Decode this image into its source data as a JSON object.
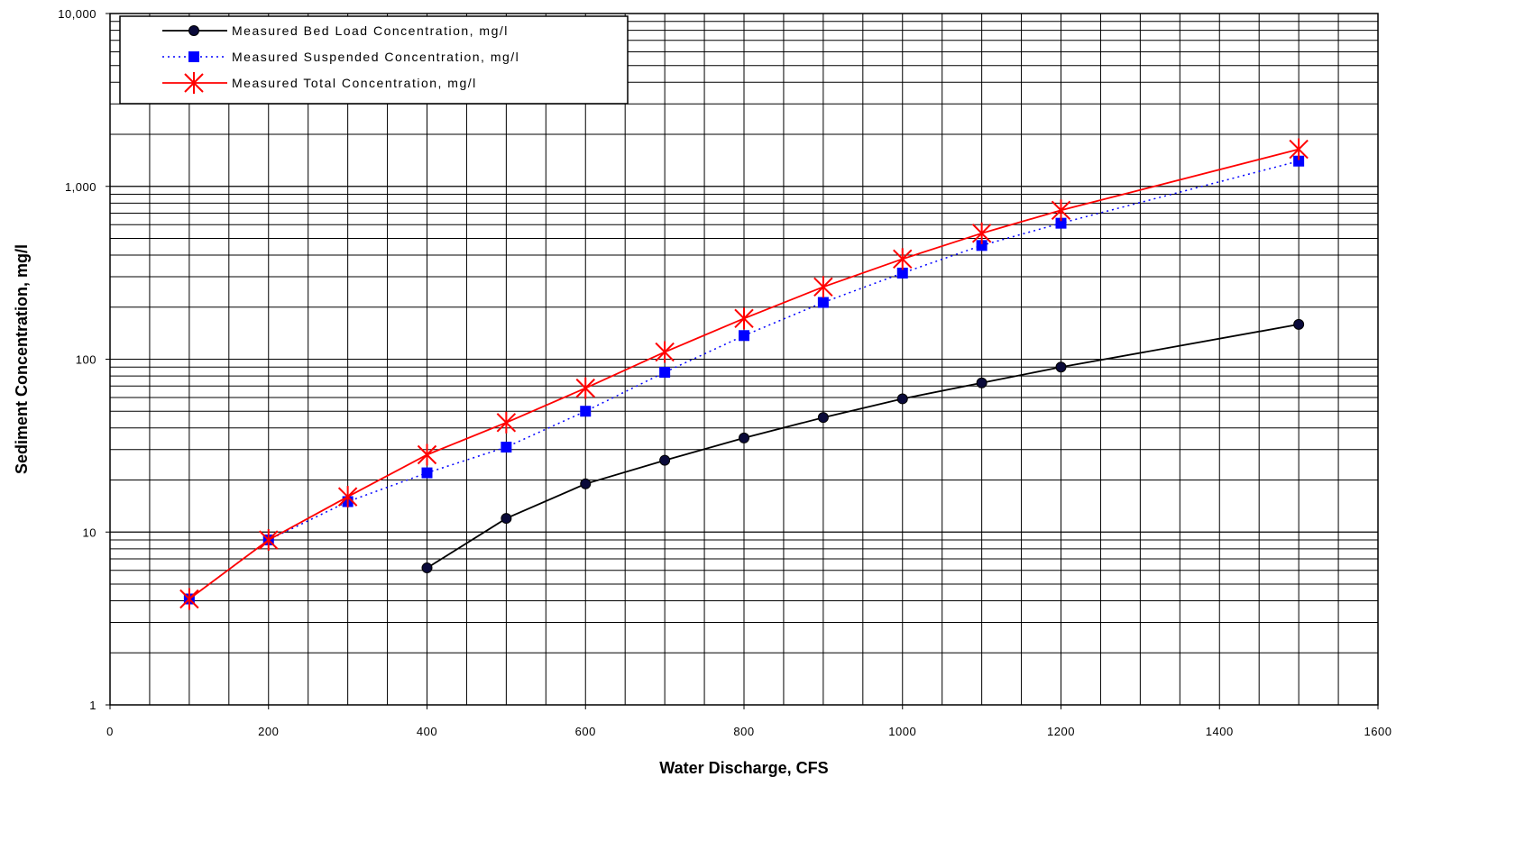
{
  "chart_data": {
    "type": "line",
    "xlabel": "Water Discharge, CFS",
    "ylabel": "Sediment Concentration, mg/l",
    "xlim": [
      0,
      1600
    ],
    "ylim": [
      1,
      10000
    ],
    "yscale": "log",
    "grid": true,
    "legend_position": "top-left",
    "x_ticks": [
      0,
      200,
      400,
      600,
      800,
      1000,
      1200,
      1400,
      1600
    ],
    "x_tick_labels": [
      "0",
      "200",
      "400",
      "600",
      "800",
      "1000",
      "1200",
      "1400",
      "1600"
    ],
    "y_ticks": [
      1,
      10,
      100,
      1000,
      10000
    ],
    "y_tick_labels": [
      "1",
      "10",
      "100",
      "1,000",
      "10,000"
    ],
    "series": [
      {
        "name": "Measured Bed Load Concentration, mg/l",
        "color": "#000000",
        "line_style": "solid",
        "marker": "circle",
        "marker_color": "#0a0a3a",
        "x": [
          400,
          500,
          600,
          700,
          800,
          900,
          1000,
          1100,
          1200,
          1500
        ],
        "y": [
          6.2,
          12,
          19,
          26,
          35,
          46,
          59,
          73,
          90,
          159
        ]
      },
      {
        "name": "Measured Suspended Concentration,  mg/l",
        "color": "#0000ff",
        "line_style": "dotted",
        "marker": "square",
        "marker_color": "#0000ff",
        "x": [
          100,
          200,
          300,
          400,
          500,
          600,
          700,
          800,
          900,
          1000,
          1100,
          1200,
          1500
        ],
        "y": [
          4.1,
          9,
          15,
          22,
          31,
          50,
          84,
          137,
          213,
          315,
          455,
          612,
          1400
        ]
      },
      {
        "name": "Measured Total Concentration, mg/l",
        "color": "#ff0000",
        "line_style": "solid",
        "marker": "star",
        "marker_color": "#ff0000",
        "x": [
          100,
          200,
          300,
          400,
          500,
          600,
          700,
          800,
          900,
          1000,
          1100,
          1200,
          1500
        ],
        "y": [
          4.1,
          9,
          16,
          28,
          43,
          68,
          110,
          172,
          262,
          380,
          535,
          727,
          1640
        ]
      }
    ]
  }
}
